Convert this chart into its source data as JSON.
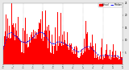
{
  "bg_color": "#e8e8e8",
  "plot_bg_color": "#ffffff",
  "bar_color": "#ff0000",
  "line_color": "#0000ff",
  "n_points": 1440,
  "ylim": [
    0,
    25
  ],
  "ytick_values": [
    5,
    10,
    15,
    20,
    25
  ],
  "ytick_labels": [
    "5",
    "10",
    "15",
    "20",
    "25"
  ],
  "legend_actual_color": "#ff0000",
  "legend_median_color": "#0000ff",
  "vline_color": "#888888",
  "vline_positions": [
    240,
    480,
    720,
    960,
    1200
  ],
  "seed": 99
}
